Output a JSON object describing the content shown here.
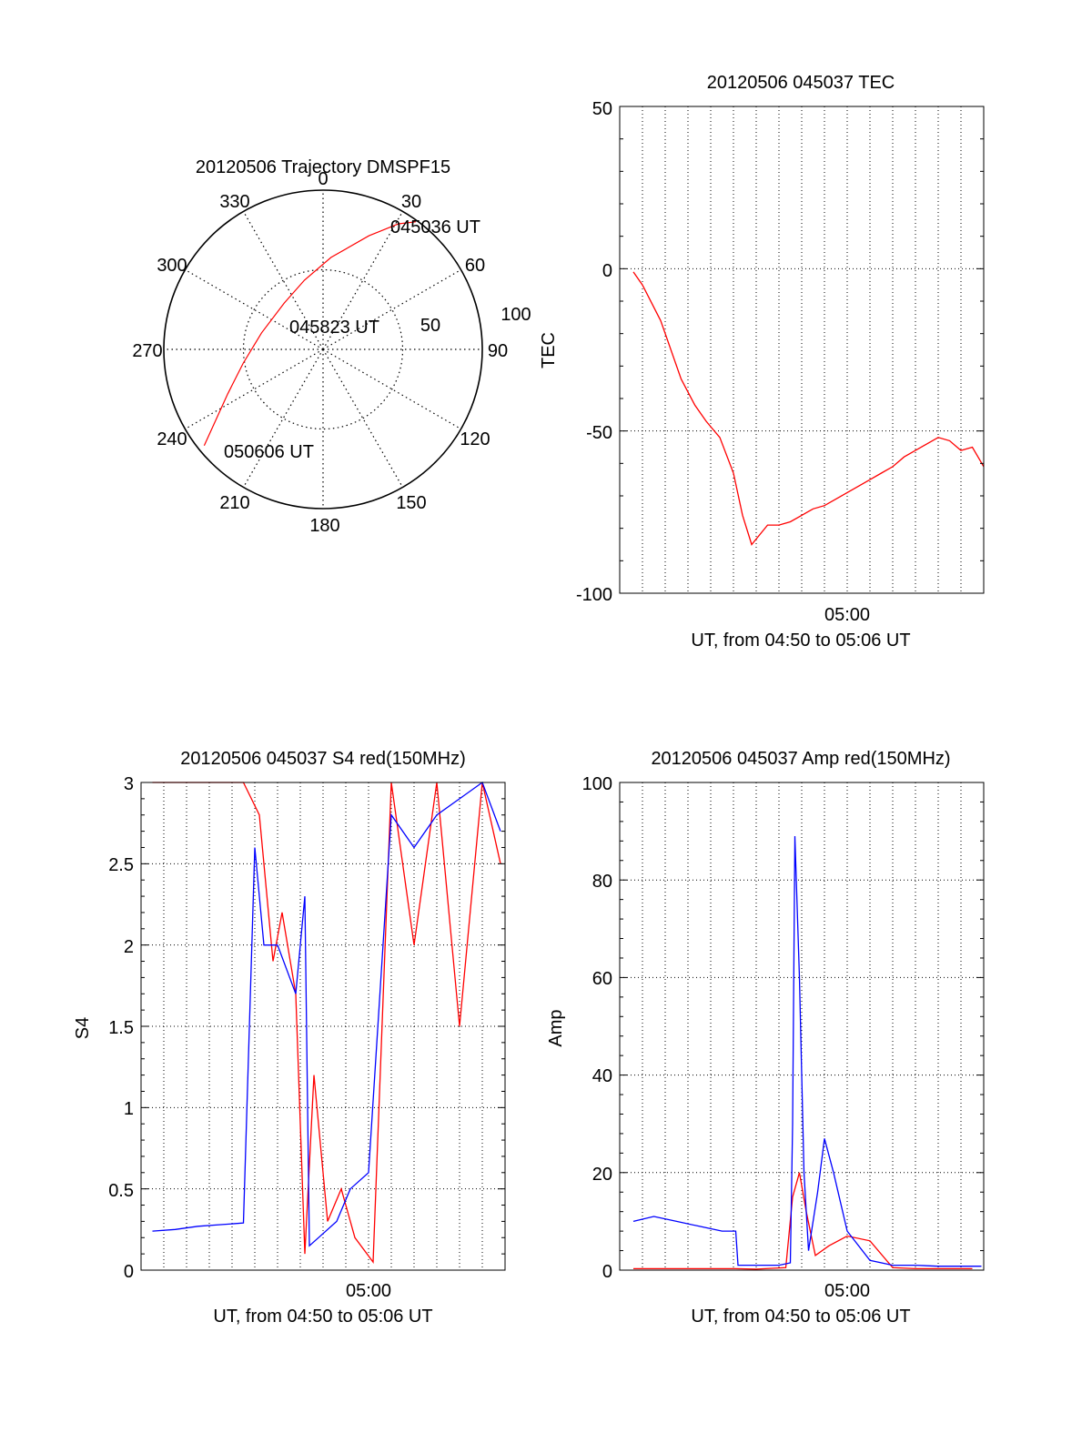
{
  "chart_data": [
    {
      "id": "trajectory",
      "type": "polar",
      "title": "20120506 Trajectory DMSPF15",
      "angle_labels": [
        "0",
        "30",
        "60",
        "90",
        "120",
        "150",
        "180",
        "210",
        "240",
        "270",
        "300",
        "330"
      ],
      "radius_labels": [
        "50",
        "100"
      ],
      "rmax": 100,
      "grid": true,
      "track_color": "#ff0000",
      "track": [
        {
          "az": 36,
          "r": 99
        },
        {
          "az": 31,
          "r": 92
        },
        {
          "az": 22,
          "r": 77
        },
        {
          "az": 5,
          "r": 58
        },
        {
          "az": -15,
          "r": 45
        },
        {
          "az": -40,
          "r": 38
        },
        {
          "az": -75,
          "r": 40
        },
        {
          "az": -100,
          "r": 51
        },
        {
          "az": -115,
          "r": 66
        },
        {
          "az": -124,
          "r": 82
        },
        {
          "az": -129,
          "r": 96
        }
      ],
      "annotations": [
        {
          "text": "045036 UT"
        },
        {
          "text": "045823 UT"
        },
        {
          "text": "050606 UT"
        }
      ]
    },
    {
      "id": "tec",
      "type": "line",
      "title": "20120506 045037 TEC",
      "xlabel": "UT, from 04:50 to 05:06 UT",
      "ylabel": "TEC",
      "x_ticklabels": [
        "05:00"
      ],
      "yticks": [
        "-100",
        "-50",
        "0",
        "50"
      ],
      "ylim": [
        -100,
        50
      ],
      "grid": true,
      "series": [
        {
          "color": "#ff0000",
          "x_minutes": [
            0.6,
            1.0,
            1.8,
            2.2,
            2.7,
            3.3,
            3.8,
            4.4,
            5.0,
            5.4,
            5.8,
            6.5,
            7.0,
            7.5,
            8.0,
            8.5,
            9.0,
            9.5,
            10.0,
            10.5,
            11.0,
            11.5,
            12.0,
            12.5,
            13.0,
            13.5,
            14.0,
            14.5,
            15.0,
            15.5,
            16.0
          ],
          "values": [
            -1,
            -5,
            -16,
            -24,
            -34,
            -42,
            -47,
            -52,
            -63,
            -76,
            -85,
            -79,
            -79,
            -78,
            -76,
            -74,
            -73,
            -71,
            -69,
            -67,
            -65,
            -63,
            -61,
            -58,
            -56,
            -54,
            -52,
            -53,
            -56,
            -55,
            -61
          ]
        }
      ]
    },
    {
      "id": "s4",
      "type": "line",
      "title": "20120506 045037 S4 red(150MHz)",
      "xlabel": "UT, from 04:50 to 05:06 UT",
      "ylabel": "S4",
      "x_ticklabels": [
        "05:00"
      ],
      "yticks": [
        "0",
        "0.5",
        "1",
        "1.5",
        "2",
        "2.5",
        "3"
      ],
      "ylim": [
        0,
        3
      ],
      "grid": true,
      "series": [
        {
          "color": "#ff0000",
          "x_minutes": [
            0.5,
            1.5,
            2.5,
            3.5,
            4.5,
            5.2,
            5.8,
            6.2,
            6.8,
            7.2,
            7.6,
            8.2,
            8.8,
            9.4,
            10.2,
            11.0,
            12.0,
            13.0,
            14.0,
            15.0,
            15.8
          ],
          "values": [
            3.0,
            3.0,
            3.0,
            3.0,
            3.0,
            2.8,
            1.9,
            2.2,
            1.7,
            0.1,
            1.2,
            0.3,
            0.5,
            0.2,
            0.05,
            3.0,
            2.0,
            3.0,
            1.5,
            3.0,
            2.5
          ]
        },
        {
          "color": "#0000ff",
          "x_minutes": [
            0.5,
            1.5,
            2.5,
            3.5,
            4.5,
            5.0,
            5.4,
            6.0,
            6.8,
            7.2,
            7.4,
            7.8,
            8.6,
            9.2,
            10.0,
            11.0,
            12.0,
            13.0,
            14.0,
            15.0,
            15.8
          ],
          "values": [
            0.24,
            0.25,
            0.27,
            0.28,
            0.29,
            2.6,
            2.0,
            2.0,
            1.7,
            2.3,
            0.15,
            0.2,
            0.3,
            0.5,
            0.6,
            2.8,
            2.6,
            2.8,
            2.9,
            3.0,
            2.7
          ]
        }
      ]
    },
    {
      "id": "amp",
      "type": "line",
      "title": "20120506 045037 Amp red(150MHz)",
      "xlabel": "UT, from 04:50 to 05:06 UT",
      "ylabel": "Amp",
      "x_ticklabels": [
        "05:00"
      ],
      "yticks": [
        "0",
        "20",
        "40",
        "60",
        "80",
        "100"
      ],
      "ylim": [
        0,
        100
      ],
      "grid": true,
      "series": [
        {
          "color": "#ff0000",
          "x_minutes": [
            0.6,
            2.0,
            4.0,
            5.1,
            6.0,
            7.3,
            7.6,
            7.9,
            8.2,
            8.6,
            9.2,
            10.0,
            11.0,
            12.0,
            13.0,
            14.0,
            15.5
          ],
          "values": [
            0.3,
            0.3,
            0.3,
            0.3,
            0.2,
            0.5,
            15,
            20,
            12,
            3,
            5,
            7,
            6,
            0.5,
            0.3,
            0.3,
            0.3
          ]
        },
        {
          "color": "#0000ff",
          "x_minutes": [
            0.6,
            1.5,
            2.5,
            3.5,
            4.5,
            5.1,
            5.2,
            6.0,
            7.0,
            7.5,
            7.6,
            7.7,
            7.9,
            8.1,
            8.3,
            8.7,
            9.0,
            9.4,
            10.0,
            11.0,
            12.0,
            13.0,
            14.0,
            15.0,
            15.9
          ],
          "values": [
            10,
            11,
            10,
            9,
            8,
            8,
            1,
            1,
            1,
            1.5,
            30,
            89,
            60,
            20,
            4,
            16,
            27,
            20,
            8,
            2,
            1,
            1,
            0.8,
            0.8,
            0.8
          ]
        }
      ]
    }
  ]
}
